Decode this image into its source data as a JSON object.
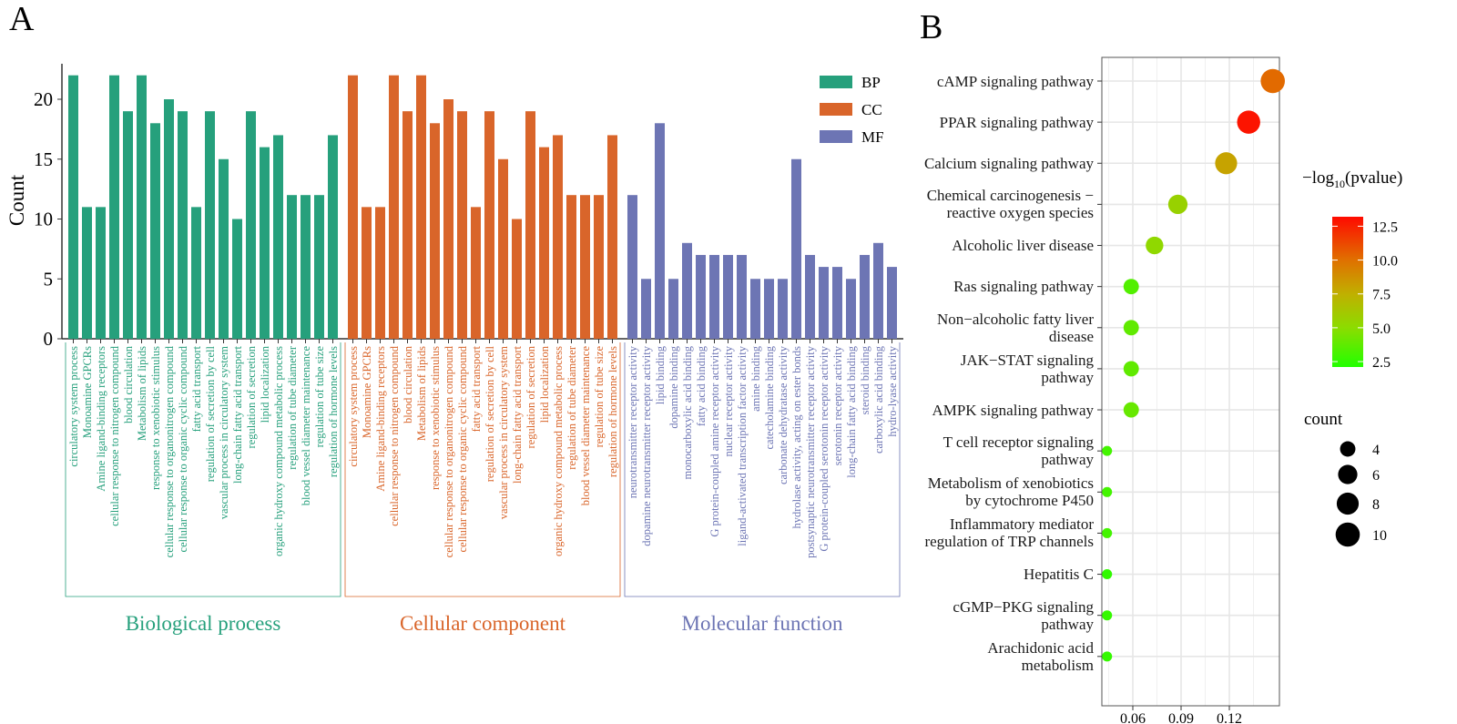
{
  "chart_data": [
    {
      "panel": "A",
      "type": "bar",
      "ylabel": "Count",
      "ylim": [
        0,
        23
      ],
      "yticks": [
        0,
        5,
        10,
        15,
        20
      ],
      "legend": {
        "position": "top-right",
        "entries": [
          "BP",
          "CC",
          "MF"
        ]
      },
      "colors": {
        "BP": "#26a07c",
        "CC": "#d9652a",
        "MF": "#6d75b4"
      },
      "groups": [
        {
          "key": "BP",
          "title": "Biological process",
          "categories": [
            "circulatory system process",
            "Monoamine GPCRs",
            "Amine ligand-binding receptors",
            "cellular response to nitrogen compound",
            "blood circulation",
            "Metabolism of lipids",
            "response to xenobiotic stimulus",
            "cellular response to organonitrogen compound",
            "cellular response to organic cyclic compound",
            "fatty acid transport",
            "regulation of secretion by cell",
            "vascular process in circulatory system",
            "long-chain fatty acid transport",
            "regulation of secretion",
            "lipid localization",
            "organic hydroxy compound metabolic process",
            "regulation of tube diameter",
            "blood vessel diameter maintenance",
            "regulation of tube size",
            "regulation of hormone levels"
          ],
          "values": [
            22,
            11,
            11,
            22,
            19,
            22,
            18,
            20,
            19,
            11,
            19,
            15,
            10,
            19,
            16,
            17,
            12,
            12,
            12,
            17
          ]
        },
        {
          "key": "CC",
          "title": "Cellular component",
          "categories": [
            "circulatory system process",
            "Monoamine GPCRs",
            "Amine ligand-binding receptors",
            "cellular response to nitrogen compound",
            "blood circulation",
            "Metabolism of lipids",
            "response to xenobiotic stimulus",
            "cellular response to organonitrogen compound",
            "cellular response to organic cyclic compound",
            "fatty acid transport",
            "regulation of secretion by cell",
            "vascular process in circulatory system",
            "long-chain fatty acid transport",
            "regulation of secretion",
            "lipid localization",
            "organic hydroxy compound metabolic process",
            "regulation of tube diameter",
            "blood vessel diameter maintenance",
            "regulation of tube size",
            "regulation of hormone levels"
          ],
          "values": [
            22,
            11,
            11,
            22,
            19,
            22,
            18,
            20,
            19,
            11,
            19,
            15,
            10,
            19,
            16,
            17,
            12,
            12,
            12,
            17
          ]
        },
        {
          "key": "MF",
          "title": "Molecular function",
          "categories": [
            "neurotransmitter receptor activity",
            "dopamine neurotransmitter receptor activity",
            "lipid binding",
            "dopamine binding",
            "monocarboxylic acid binding",
            "fatty acid binding",
            "G protein-coupled amine receptor activity",
            "nuclear receptor activity",
            "ligand-activated transcription factor activity",
            "amine binding",
            "catecholamine binding",
            "carbonate dehydratase activity",
            "hydrolase activity, acting on ester bonds",
            "postsynaptic neurotransmitter receptor activity",
            "G protein-coupled serotonin receptor activity",
            "serotonin receptor activity",
            "long-chain fatty acid binding",
            "steroid binding",
            "carboxylic acid binding",
            "hydro-lyase activity"
          ],
          "values": [
            12,
            5,
            18,
            5,
            8,
            7,
            7,
            7,
            7,
            5,
            5,
            5,
            15,
            7,
            6,
            6,
            5,
            7,
            8,
            6
          ]
        }
      ]
    },
    {
      "panel": "B",
      "type": "scatter",
      "xlabel": "",
      "xlim": [
        0.041,
        0.151
      ],
      "xticks": [
        "0.06",
        "0.09",
        "0.12"
      ],
      "grid": true,
      "color_legend": {
        "title_prefix": "−log",
        "title_sub": "10",
        "title_suffix": "(pvalue)",
        "ticks": [
          "12.5",
          "10.0",
          "7.5",
          "5.0",
          "2.5"
        ],
        "range": [
          2.1,
          13.2
        ]
      },
      "size_legend": {
        "title": "count",
        "ticks": [
          4,
          6,
          8,
          10
        ]
      },
      "points": [
        {
          "term": "cAMP signaling pathway",
          "ratio": 0.147,
          "count": 10,
          "neglog10p": 10.2
        },
        {
          "term": "PPAR signaling pathway",
          "ratio": 0.132,
          "count": 9,
          "neglog10p": 12.9
        },
        {
          "term": "Calcium signaling pathway",
          "ratio": 0.118,
          "count": 8,
          "neglog10p": 8.0
        },
        {
          "term": "Chemical carcinogenesis − reactive oxygen species",
          "ratio": 0.088,
          "count": 6,
          "neglog10p": 5.6
        },
        {
          "term": "Alcoholic liver disease",
          "ratio": 0.0735,
          "count": 5,
          "neglog10p": 5.2
        },
        {
          "term": "Ras signaling pathway",
          "ratio": 0.059,
          "count": 4,
          "neglog10p": 3.4
        },
        {
          "term": "Non−alcoholic fatty liver disease",
          "ratio": 0.059,
          "count": 4,
          "neglog10p": 3.8
        },
        {
          "term": "JAK−STAT signaling pathway",
          "ratio": 0.059,
          "count": 4,
          "neglog10p": 3.8
        },
        {
          "term": "AMPK signaling pathway",
          "ratio": 0.059,
          "count": 4,
          "neglog10p": 4.0
        },
        {
          "term": "T cell receptor signaling pathway",
          "ratio": 0.044,
          "count": 3,
          "neglog10p": 3.0
        },
        {
          "term": "Metabolism of xenobiotics by cytochrome P450",
          "ratio": 0.044,
          "count": 3,
          "neglog10p": 3.0
        },
        {
          "term": "Inflammatory mediator regulation of TRP channels",
          "ratio": 0.044,
          "count": 3,
          "neglog10p": 3.0
        },
        {
          "term": "Hepatitis C",
          "ratio": 0.044,
          "count": 3,
          "neglog10p": 2.5
        },
        {
          "term": "cGMP−PKG signaling pathway",
          "ratio": 0.044,
          "count": 3,
          "neglog10p": 2.6
        },
        {
          "term": "Arachidonic acid metabolism",
          "ratio": 0.044,
          "count": 3,
          "neglog10p": 2.6
        }
      ]
    }
  ],
  "panel_labels": {
    "a": "A",
    "b": "B"
  }
}
